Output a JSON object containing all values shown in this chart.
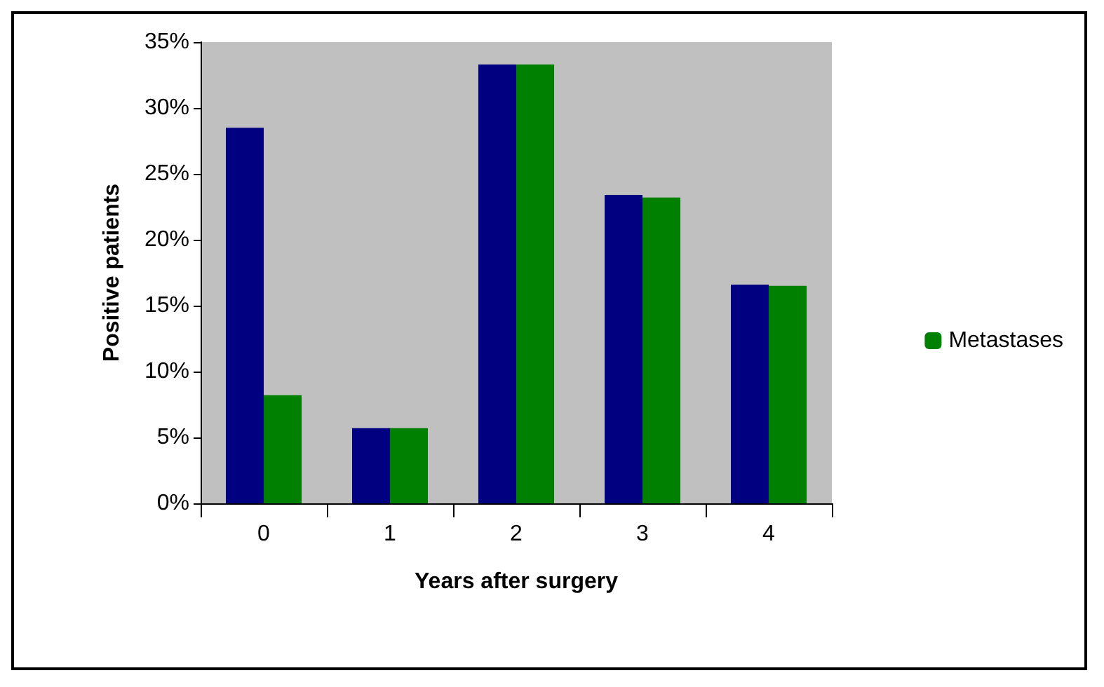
{
  "chart_data": {
    "type": "bar",
    "xlabel": "Years after surgery",
    "ylabel": "Positive patients",
    "categories": [
      "0",
      "1",
      "2",
      "3",
      "4"
    ],
    "series": [
      {
        "color": "#000080",
        "values": [
          28.5,
          5.7,
          33.3,
          23.4,
          16.6
        ]
      },
      {
        "name": "Metastases",
        "color": "#008000",
        "values": [
          8.2,
          5.7,
          33.3,
          23.2,
          16.5
        ]
      }
    ],
    "ylim": [
      0,
      35
    ],
    "yticks": [
      {
        "value": 0,
        "label": "0%"
      },
      {
        "value": 5,
        "label": "5%"
      },
      {
        "value": 10,
        "label": "10%"
      },
      {
        "value": 15,
        "label": "15%"
      },
      {
        "value": 20,
        "label": "20%"
      },
      {
        "value": 25,
        "label": "25%"
      },
      {
        "value": 30,
        "label": "30%"
      },
      {
        "value": 35,
        "label": "35%"
      }
    ],
    "grid": false,
    "legend": "right"
  }
}
